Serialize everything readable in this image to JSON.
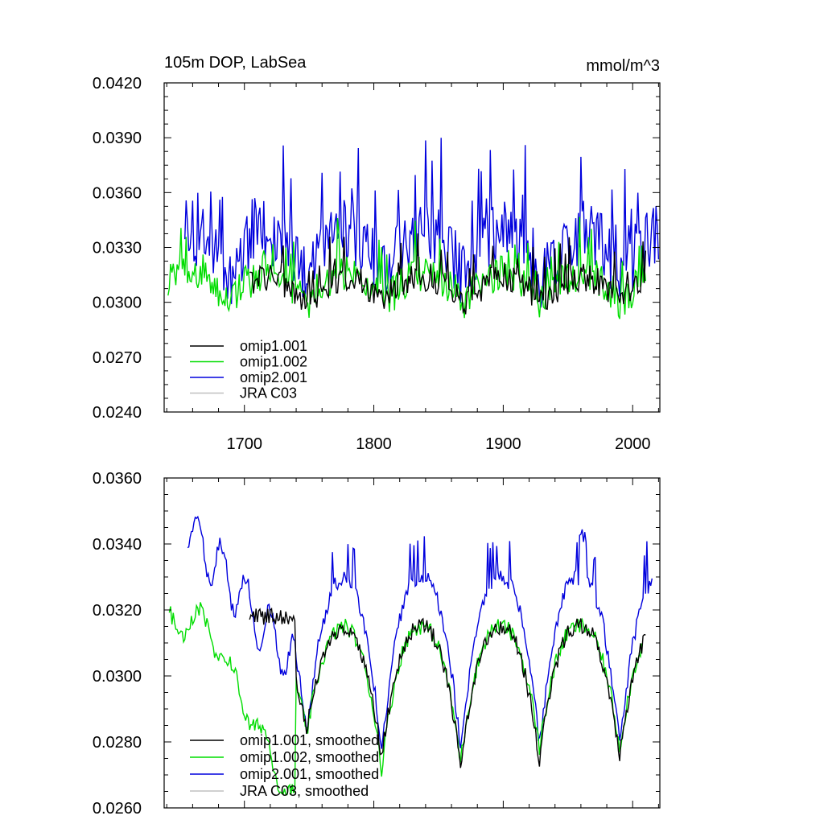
{
  "chart_data": [
    {
      "type": "line",
      "title": "105m DOP, LabSea",
      "units": "mmol/m^3",
      "xlim": [
        1638,
        2021
      ],
      "ylim": [
        0.024,
        0.042
      ],
      "x_ticks": [
        1700,
        1800,
        1900,
        2000
      ],
      "x_tick_labels": [
        "1700",
        "1800",
        "1900",
        "2000"
      ],
      "y_ticks": [
        0.024,
        0.027,
        0.03,
        0.033,
        0.036,
        0.039,
        0.042
      ],
      "y_tick_labels": [
        "0.0240",
        "0.0270",
        "0.0300",
        "0.0330",
        "0.0360",
        "0.0390",
        "0.0420"
      ],
      "legend": [
        "omip1.001",
        "omip1.002",
        "omip2.001",
        "JRA C03"
      ],
      "series": [
        {
          "name": "omip1.001",
          "color": "#000000",
          "x_start": 1704,
          "x_end": 2010,
          "base": 0.0302,
          "amp": 0.0015,
          "noise": 0.0008,
          "phase": 0
        },
        {
          "name": "omip1.002",
          "color": "#00dd00",
          "x_start": 1641,
          "x_end": 2010,
          "base": 0.0303,
          "amp": 0.0016,
          "noise": 0.001,
          "phase": 0.2
        },
        {
          "name": "omip2.001",
          "color": "#0000dd",
          "x_start": 1654,
          "x_end": 2020,
          "base": 0.0318,
          "amp": 0.0025,
          "noise": 0.0018,
          "phase": 0.4
        },
        {
          "name": "JRA C03",
          "color": "#c0c0c0",
          "x_start": null,
          "x_end": null
        }
      ]
    },
    {
      "type": "line",
      "title": "",
      "xlim": [
        1638,
        2021
      ],
      "ylim": [
        0.026,
        0.036
      ],
      "x_ticks": [
        1700,
        1800,
        1900,
        2000
      ],
      "y_ticks": [
        0.026,
        0.028,
        0.03,
        0.032,
        0.034,
        0.036
      ],
      "y_tick_labels": [
        "0.0260",
        "0.0280",
        "0.0300",
        "0.0320",
        "0.0340",
        "0.0360"
      ],
      "legend": [
        "omip1.001, smoothed",
        "omip1.002, smoothed",
        "omip2.001, smoothed",
        "JRA C03, smoothed"
      ],
      "series": [
        {
          "name": "omip1.001, smoothed",
          "color": "#000000",
          "x_start": 1704,
          "x_end": 2010
        },
        {
          "name": "omip1.002, smoothed",
          "color": "#00dd00",
          "x_start": 1642,
          "x_end": 2007
        },
        {
          "name": "omip2.001, smoothed",
          "color": "#0000dd",
          "x_start": 1656,
          "x_end": 2015
        },
        {
          "name": "JRA C03, smoothed",
          "color": "#c0c0c0",
          "x_start": null,
          "x_end": null
        }
      ],
      "cycle_minima_years": [
        1748,
        1806,
        1867,
        1928,
        1990
      ],
      "minima_values": {
        "omip1.001, smoothed": [
          0.0283,
          0.0275,
          0.0273,
          0.0274,
          0.0276
        ],
        "omip1.002, smoothed": [
          0.0282,
          0.0272,
          0.0274,
          0.0278,
          0.0278
        ],
        "omip2.001, smoothed": [
          0.0283,
          0.0277,
          0.0278,
          0.0279,
          0.0279
        ]
      }
    }
  ]
}
